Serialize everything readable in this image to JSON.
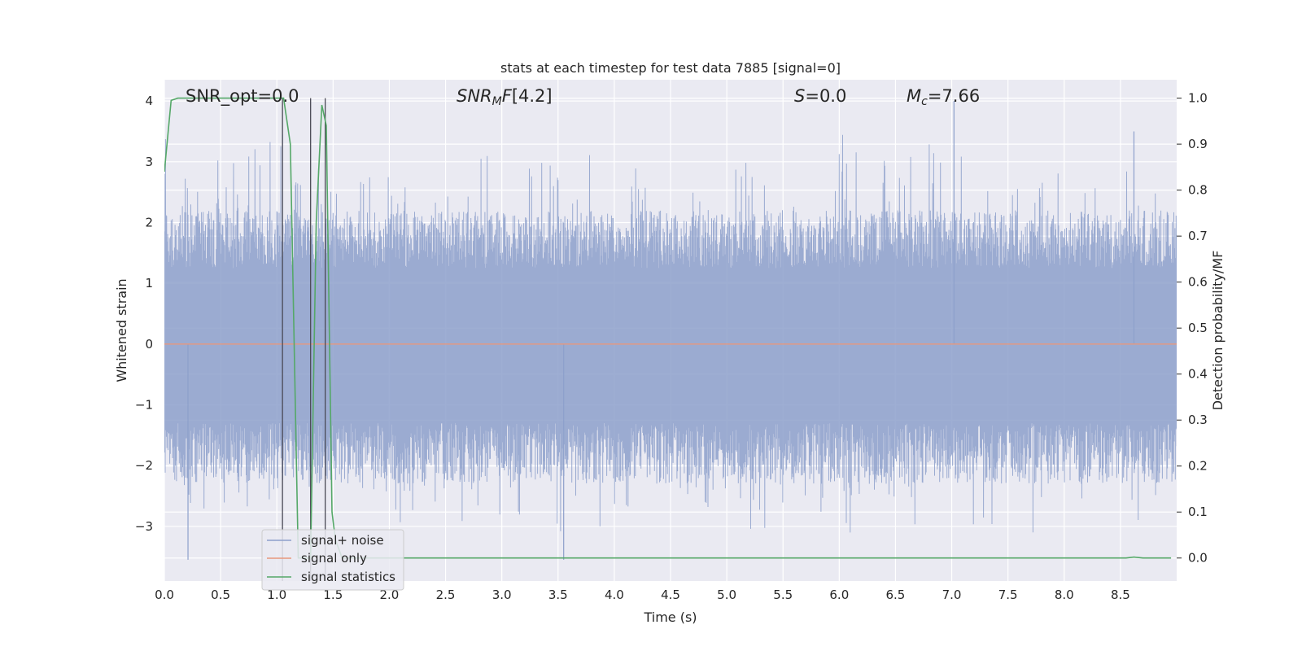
{
  "chart_data": {
    "type": "line",
    "title": "stats at each timestep for test data 7885 [signal=0]",
    "xlabel": "Time (s)",
    "ylabel_left": "Whitened strain",
    "ylabel_right": "Detection probability/MF",
    "xlim": [
      0,
      9.0
    ],
    "ylim_left": [
      -3.9,
      4.35
    ],
    "ylim_right": [
      -0.05,
      1.04
    ],
    "xticks": [
      0.0,
      0.5,
      1.0,
      1.5,
      2.0,
      2.5,
      3.0,
      3.5,
      4.0,
      4.5,
      5.0,
      5.5,
      6.0,
      6.5,
      7.0,
      7.5,
      8.0,
      8.5
    ],
    "yticks_left": [
      -3,
      -2,
      -1,
      0,
      1,
      2,
      3,
      4
    ],
    "yticks_right": [
      0.0,
      0.1,
      0.2,
      0.3,
      0.4,
      0.5,
      0.6,
      0.7,
      0.8,
      0.9,
      1.0
    ],
    "grid": true,
    "legend_position": "lower-left",
    "annotations": {
      "snr_opt": "SNR_opt=0.0",
      "snr_mf": "[4.2]",
      "s_value": "=0.0",
      "mc_value": "=7.66"
    },
    "noise_envelope": {
      "upper_typical": 2.2,
      "lower_typical": -2.3,
      "max": 4.0,
      "min": -3.55
    },
    "vertical_markers_x": [
      1.05,
      1.3,
      1.43
    ],
    "series": [
      {
        "name": "signal+ noise",
        "axis": "left",
        "color": "#8da0cb",
        "kind": "noise_strain"
      },
      {
        "name": "signal only",
        "axis": "left",
        "color": "#e8987c",
        "x": [
          0.0,
          9.0
        ],
        "y": [
          0.0,
          0.0
        ]
      },
      {
        "name": "signal statistics",
        "axis": "right",
        "color": "#55a868",
        "x": [
          0.0,
          0.06,
          0.12,
          0.2,
          0.5,
          0.9,
          1.02,
          1.06,
          1.12,
          1.19,
          1.25,
          1.3,
          1.35,
          1.4,
          1.44,
          1.49,
          1.52,
          1.58,
          2.0,
          4.0,
          6.0,
          8.0,
          8.55,
          8.62,
          8.7,
          8.95
        ],
        "y": [
          0.84,
          0.995,
          1.0,
          1.0,
          1.0,
          1.0,
          1.0,
          1.0,
          0.9,
          0.0,
          0.0,
          0.0,
          0.73,
          0.985,
          0.94,
          0.1,
          0.04,
          0.0,
          0.0,
          0.0,
          0.0,
          0.0,
          0.0,
          0.002,
          0.0,
          0.0
        ]
      }
    ]
  },
  "colors": {
    "plot_background": "#eaeaf2",
    "grid": "#ffffff",
    "noise": "#8da0cb",
    "signal_only": "#e8987c",
    "statistics": "#55a868",
    "marker": "#4a4a55"
  }
}
